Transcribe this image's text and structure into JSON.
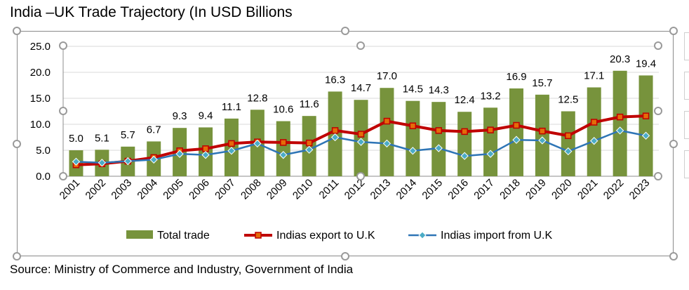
{
  "title": "India –UK Trade Trajectory (In USD Billions",
  "source": "Source: Ministry of Commerce and Industry, Government of India",
  "chart_data": {
    "type": "bar",
    "categories": [
      "2001",
      "2002",
      "2003",
      "2004",
      "2005",
      "2006",
      "2007",
      "2008",
      "2009",
      "2010",
      "2011",
      "2012",
      "2013",
      "2014",
      "2015",
      "2016",
      "2017",
      "2018",
      "2019",
      "2020",
      "2021",
      "2022",
      "2023"
    ],
    "ylim": [
      0,
      25
    ],
    "yticks": [
      "0.0",
      "5.0",
      "10.0",
      "15.0",
      "20.0",
      "25.0"
    ],
    "grid": true,
    "legend_position": "bottom",
    "series": [
      {
        "name": "Total trade",
        "type": "bar",
        "color": "#77933c",
        "values": [
          5.0,
          5.1,
          5.7,
          6.7,
          9.3,
          9.4,
          11.1,
          12.8,
          10.6,
          11.6,
          16.3,
          14.7,
          17.0,
          14.5,
          14.3,
          12.4,
          13.2,
          16.9,
          15.7,
          12.5,
          17.1,
          20.3,
          19.4
        ],
        "labels": [
          "5.0",
          "5.1",
          "5.7",
          "6.7",
          "9.3",
          "9.4",
          "11.1",
          "12.8",
          "10.6",
          "11.6",
          "16.3",
          "14.7",
          "17.0",
          "14.5",
          "14.3",
          "12.4",
          "13.2",
          "16.9",
          "15.7",
          "12.5",
          "17.1",
          "20.3",
          "19.4"
        ]
      },
      {
        "name": "Indias export to U.K",
        "type": "line",
        "color": "#c00000",
        "marker_fill": "#e46c0a",
        "values": [
          2.2,
          2.4,
          2.9,
          3.6,
          4.9,
          5.3,
          6.3,
          6.6,
          6.5,
          6.4,
          8.8,
          8.1,
          10.6,
          9.7,
          8.8,
          8.6,
          8.9,
          9.8,
          8.7,
          7.8,
          10.4,
          11.4,
          11.6
        ]
      },
      {
        "name": "Indias import from U.K",
        "type": "line",
        "color": "#2e75b6",
        "marker_fill": "#4bacc6",
        "values": [
          2.8,
          2.6,
          2.9,
          3.2,
          4.3,
          4.1,
          4.9,
          6.3,
          4.1,
          5.1,
          7.5,
          6.6,
          6.3,
          4.9,
          5.4,
          3.9,
          4.3,
          7.0,
          6.9,
          4.8,
          6.8,
          8.8,
          7.8
        ]
      }
    ]
  }
}
